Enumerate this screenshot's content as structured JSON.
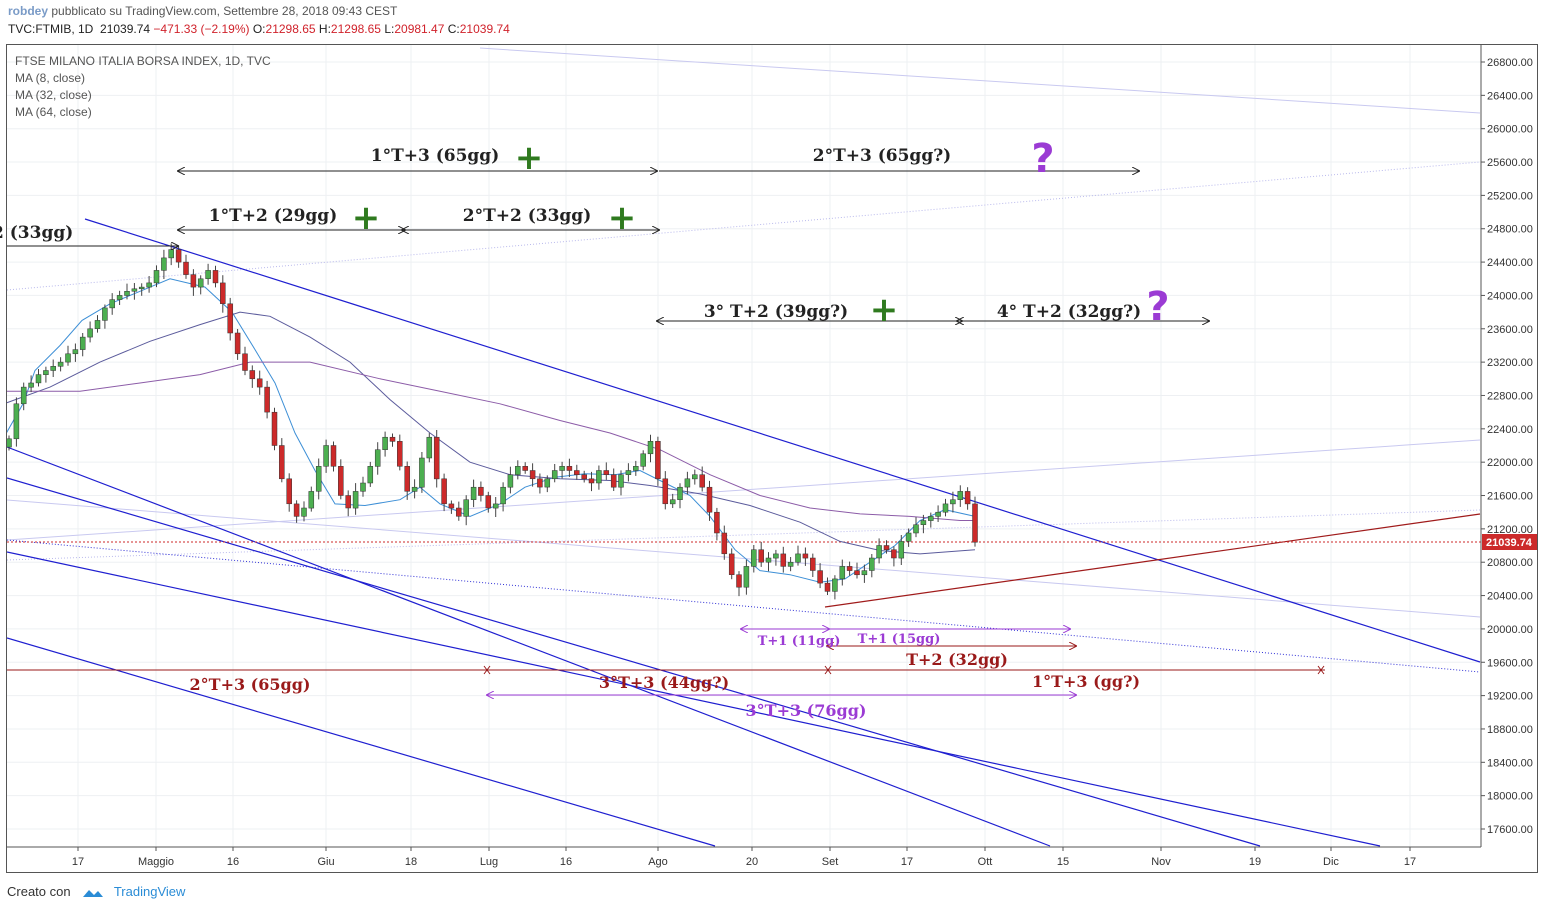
{
  "header": {
    "author": "robdey",
    "published": "pubblicato su TradingView.com, Settembre 28, 2018 09:43 CEST",
    "symbol": "TVC:FTMIB, 1D",
    "last": "21039.74",
    "change": "−471.33 (−2.19%)",
    "o_label": "O:",
    "o": "21298.65",
    "h_label": "H:",
    "h": "21298.65",
    "l_label": "L:",
    "l": "20981.47",
    "c_label": "C:",
    "c": "21039.74"
  },
  "legend": {
    "title": "FTSE MILANO ITALIA BORSA INDEX, 1D, TVC",
    "ma1": "MA (8, close)",
    "ma2": "MA (32, close)",
    "ma3": "MA (64, close)"
  },
  "footer": {
    "created_with": "Creato con",
    "brand": "TradingView"
  },
  "colors": {
    "up": "#2e9a8e",
    "down": "#cc2a2a",
    "ma8": "#3d8fd6",
    "ma32": "#5b5b9c",
    "ma64": "#8c5ca8",
    "channel": "#1f1fd0",
    "green_plus": "#2f7a1f",
    "purple": "#9b3bd4",
    "darkred": "#9a1a1a"
  },
  "chart_data": {
    "type": "line",
    "title": "FTSE MILANO ITALIA BORSA INDEX, 1D, TVC",
    "y_axis": {
      "min": 17300,
      "max": 26900,
      "ticks": [
        "26800.00",
        "26400.00",
        "26000.00",
        "25600.00",
        "25200.00",
        "24800.00",
        "24400.00",
        "24000.00",
        "23600.00",
        "23200.00",
        "22800.00",
        "22400.00",
        "22000.00",
        "21600.00",
        "21200.00",
        "20800.00",
        "20400.00",
        "20000.00",
        "19600.00",
        "19200.00",
        "18800.00",
        "18400.00",
        "18000.00",
        "17600.00"
      ],
      "last_price_label": "21039.74"
    },
    "x_axis": {
      "ticks": [
        {
          "label": "17",
          "date": "2018-04-17"
        },
        {
          "label": "Maggio",
          "date": "2018-05-01"
        },
        {
          "label": "16",
          "date": "2018-05-16"
        },
        {
          "label": "Giu",
          "date": "2018-06-01"
        },
        {
          "label": "18",
          "date": "2018-06-18"
        },
        {
          "label": "Lug",
          "date": "2018-07-02"
        },
        {
          "label": "16",
          "date": "2018-07-16"
        },
        {
          "label": "Ago",
          "date": "2018-08-01"
        },
        {
          "label": "20",
          "date": "2018-08-20"
        },
        {
          "label": "Set",
          "date": "2018-09-03"
        },
        {
          "label": "17",
          "date": "2018-09-17"
        },
        {
          "label": "Ott",
          "date": "2018-10-01"
        },
        {
          "label": "15",
          "date": "2018-10-15"
        },
        {
          "label": "Nov",
          "date": "2018-11-01"
        },
        {
          "label": "19",
          "date": "2018-11-19"
        },
        {
          "label": "Dic",
          "date": "2018-12-03"
        },
        {
          "label": "17",
          "date": "2018-12-17"
        }
      ]
    },
    "series": [
      {
        "name": "MA (8, close)",
        "points": [
          [
            4,
            22300
          ],
          [
            23,
            22700
          ],
          [
            35,
            23100
          ],
          [
            60,
            23400
          ],
          [
            82,
            23700
          ],
          [
            110,
            23900
          ],
          [
            140,
            24050
          ],
          [
            170,
            24200
          ],
          [
            205,
            24100
          ],
          [
            232,
            23800
          ],
          [
            255,
            23350
          ],
          [
            275,
            22950
          ],
          [
            295,
            22350
          ],
          [
            315,
            21900
          ],
          [
            335,
            21500
          ],
          [
            365,
            21480
          ],
          [
            400,
            21550
          ],
          [
            420,
            21700
          ],
          [
            440,
            21500
          ],
          [
            470,
            21350
          ],
          [
            500,
            21500
          ],
          [
            525,
            21700
          ],
          [
            555,
            21820
          ],
          [
            585,
            21860
          ],
          [
            615,
            21850
          ],
          [
            640,
            21900
          ],
          [
            665,
            21750
          ],
          [
            690,
            21600
          ],
          [
            710,
            21350
          ],
          [
            735,
            20950
          ],
          [
            760,
            20700
          ],
          [
            790,
            20650
          ],
          [
            820,
            20560
          ],
          [
            845,
            20600
          ],
          [
            870,
            20800
          ],
          [
            895,
            21000
          ],
          [
            920,
            21300
          ],
          [
            945,
            21430
          ],
          [
            975,
            21350
          ]
        ]
      },
      {
        "name": "MA (32, close)",
        "points": [
          [
            4,
            22700
          ],
          [
            50,
            22900
          ],
          [
            100,
            23200
          ],
          [
            150,
            23450
          ],
          [
            200,
            23650
          ],
          [
            240,
            23800
          ],
          [
            270,
            23750
          ],
          [
            310,
            23500
          ],
          [
            350,
            23200
          ],
          [
            390,
            22750
          ],
          [
            430,
            22350
          ],
          [
            470,
            22000
          ],
          [
            510,
            21850
          ],
          [
            560,
            21800
          ],
          [
            610,
            21780
          ],
          [
            650,
            21720
          ],
          [
            700,
            21620
          ],
          [
            750,
            21480
          ],
          [
            800,
            21280
          ],
          [
            840,
            21050
          ],
          [
            880,
            20940
          ],
          [
            920,
            20900
          ],
          [
            975,
            20950
          ]
        ]
      },
      {
        "name": "MA (64, close)",
        "points": [
          [
            4,
            22850
          ],
          [
            80,
            22850
          ],
          [
            140,
            22950
          ],
          [
            200,
            23050
          ],
          [
            250,
            23200
          ],
          [
            310,
            23200
          ],
          [
            380,
            23000
          ],
          [
            440,
            22850
          ],
          [
            500,
            22700
          ],
          [
            560,
            22500
          ],
          [
            610,
            22350
          ],
          [
            660,
            22150
          ],
          [
            710,
            21850
          ],
          [
            760,
            21600
          ],
          [
            810,
            21450
          ],
          [
            860,
            21380
          ],
          [
            910,
            21350
          ],
          [
            960,
            21300
          ],
          [
            975,
            21300
          ]
        ]
      }
    ],
    "annotations": [
      {
        "text": "1°T+3 (65gg)",
        "mark": "+",
        "color": "#222"
      },
      {
        "text": "2°T+3 (65gg?)",
        "mark": "?",
        "color": "#222"
      },
      {
        "text": "1°T+2 (29gg)",
        "mark": "+",
        "color": "#222"
      },
      {
        "text": "2°T+2 (33gg)",
        "mark": "+",
        "color": "#222"
      },
      {
        "text": "2 (33gg)",
        "mark": "",
        "color": "#222"
      },
      {
        "text": "3° T+2 (39gg?)",
        "mark": "+",
        "color": "#222"
      },
      {
        "text": "4° T+2 (32gg?)",
        "mark": "?",
        "color": "#222"
      },
      {
        "text": "T+1 (11gg)",
        "mark": "",
        "color": "#9b3bd4"
      },
      {
        "text": "T+1 (15gg)",
        "mark": "",
        "color": "#9b3bd4"
      },
      {
        "text": "T+2 (32gg)",
        "mark": "",
        "color": "#9a1a1a"
      },
      {
        "text": "2°T+3 (65gg)",
        "mark": "",
        "color": "#9a1a1a"
      },
      {
        "text": "3°T+3 (44gg?)",
        "mark": "",
        "color": "#9a1a1a"
      },
      {
        "text": "1°T+3 (gg?)",
        "mark": "",
        "color": "#9a1a1a"
      },
      {
        "text": "3°T+3 (76gg)",
        "mark": "",
        "color": "#9b3bd4"
      }
    ]
  }
}
